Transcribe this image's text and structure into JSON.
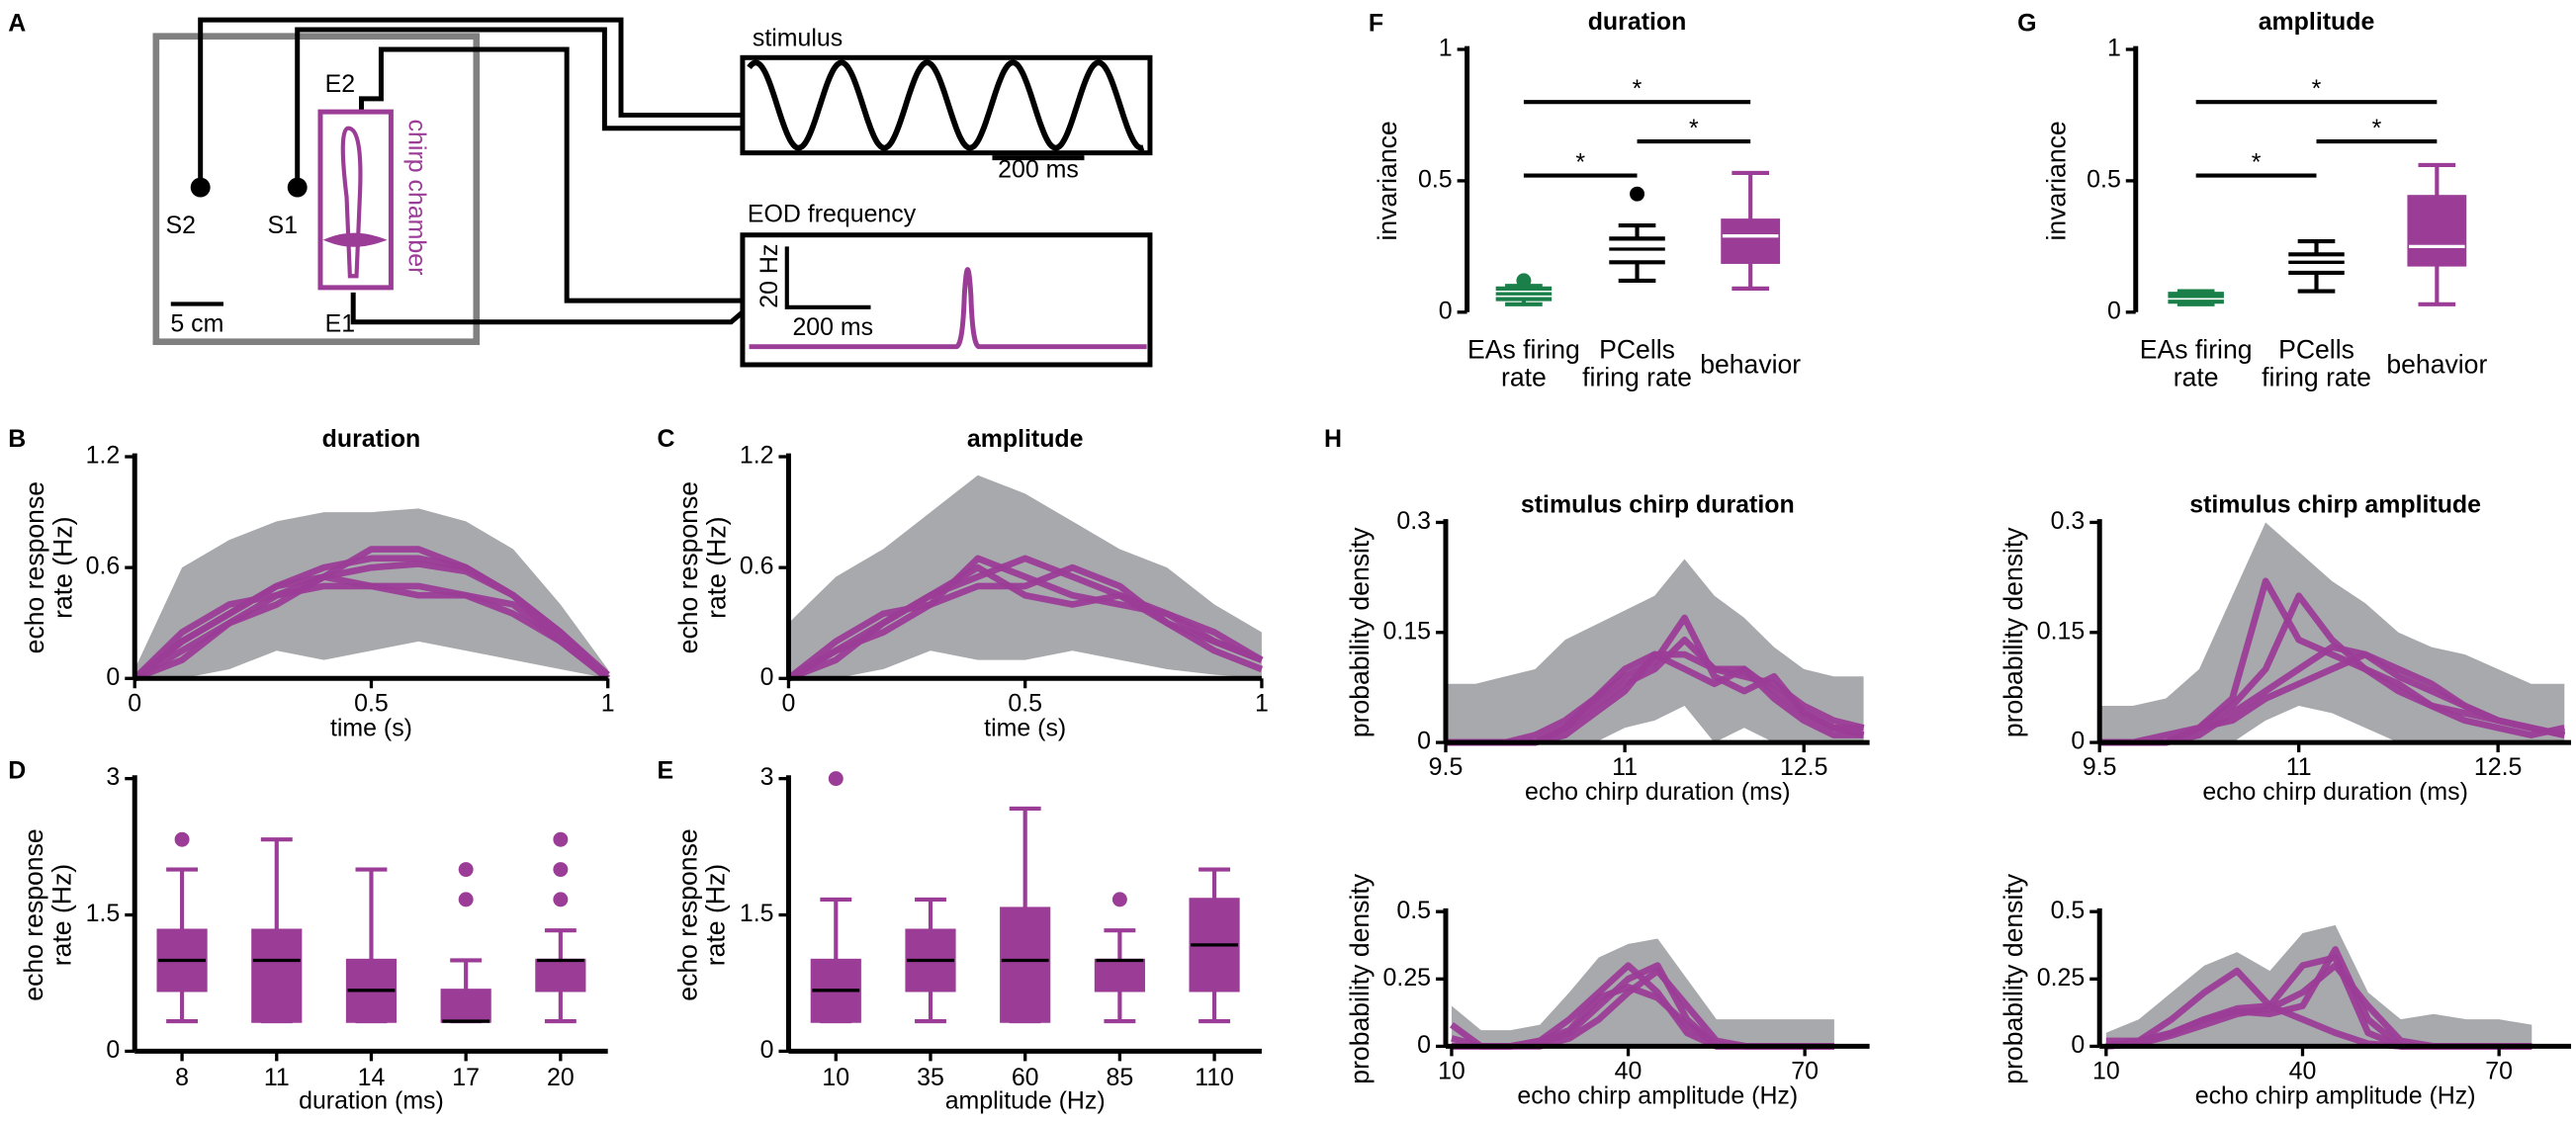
{
  "panel_labels": [
    "A",
    "B",
    "C",
    "D",
    "E",
    "F",
    "G",
    "H"
  ],
  "panel_a": {
    "stimulus": "stimulus",
    "eod": "EOD frequency",
    "stim_scale": "200 ms",
    "eod_freq_scale": "20 Hz",
    "eod_time_scale": "200 ms",
    "s2": "S2",
    "s1": "S1",
    "e2": "E2",
    "e1": "E1",
    "length_scale": "5 cm",
    "chamber": "chirp chamber"
  },
  "chart_data": [
    {
      "type": "line",
      "title": "duration",
      "ylabel": "echo response rate (Hz)",
      "xlabel": "time (s)",
      "x": [
        0,
        0.1,
        0.2,
        0.3,
        0.4,
        0.5,
        0.6,
        0.7,
        0.8,
        0.9,
        1
      ],
      "xlim": [
        0,
        1
      ],
      "xticks": [
        0,
        0.5,
        1
      ],
      "ylim": [
        0,
        1.2
      ],
      "yticks": [
        0,
        0.6,
        1.2
      ],
      "band": {
        "color": "#a7a9ac",
        "lower": [
          0,
          0,
          0.05,
          0.15,
          0.1,
          0.15,
          0.2,
          0.15,
          0.1,
          0.05,
          0
        ],
        "upper": [
          0.05,
          0.6,
          0.75,
          0.85,
          0.9,
          0.9,
          0.92,
          0.85,
          0.7,
          0.4,
          0.05
        ]
      },
      "series": [
        {
          "color": "#9b3c97",
          "values": [
            0,
            0.15,
            0.3,
            0.45,
            0.55,
            0.6,
            0.62,
            0.58,
            0.45,
            0.25,
            0
          ]
        },
        {
          "color": "#9b3c97",
          "values": [
            0,
            0.2,
            0.35,
            0.5,
            0.6,
            0.65,
            0.65,
            0.6,
            0.45,
            0.2,
            0.02
          ]
        },
        {
          "color": "#9b3c97",
          "values": [
            0,
            0.25,
            0.4,
            0.45,
            0.5,
            0.5,
            0.5,
            0.45,
            0.35,
            0.2,
            0
          ]
        },
        {
          "color": "#9b3c97",
          "values": [
            0,
            0.2,
            0.35,
            0.5,
            0.55,
            0.5,
            0.45,
            0.45,
            0.4,
            0.2,
            0
          ]
        },
        {
          "color": "#9b3c97",
          "values": [
            0,
            0.1,
            0.3,
            0.4,
            0.55,
            0.7,
            0.7,
            0.6,
            0.45,
            0.25,
            0.02
          ]
        }
      ]
    },
    {
      "type": "line",
      "title": "amplitude",
      "ylabel": "echo response rate (Hz)",
      "xlabel": "time (s)",
      "x": [
        0,
        0.1,
        0.2,
        0.3,
        0.4,
        0.5,
        0.6,
        0.7,
        0.8,
        0.9,
        1
      ],
      "xlim": [
        0,
        1
      ],
      "xticks": [
        0,
        0.5,
        1
      ],
      "ylim": [
        0,
        1.2
      ],
      "yticks": [
        0,
        0.6,
        1.2
      ],
      "band": {
        "color": "#a7a9ac",
        "lower": [
          0,
          0,
          0.05,
          0.15,
          0.1,
          0.1,
          0.15,
          0.1,
          0.05,
          0.02,
          0
        ],
        "upper": [
          0.3,
          0.55,
          0.7,
          0.9,
          1.1,
          1.0,
          0.85,
          0.7,
          0.6,
          0.4,
          0.25
        ]
      },
      "series": [
        {
          "color": "#9b3c97",
          "values": [
            0,
            0.15,
            0.3,
            0.45,
            0.6,
            0.45,
            0.4,
            0.45,
            0.35,
            0.25,
            0.1
          ]
        },
        {
          "color": "#9b3c97",
          "values": [
            0,
            0.2,
            0.35,
            0.4,
            0.65,
            0.55,
            0.45,
            0.4,
            0.35,
            0.2,
            0.1
          ]
        },
        {
          "color": "#9b3c97",
          "values": [
            0,
            0.1,
            0.3,
            0.45,
            0.55,
            0.65,
            0.55,
            0.45,
            0.3,
            0.15,
            0.05
          ]
        },
        {
          "color": "#9b3c97",
          "values": [
            0,
            0.15,
            0.25,
            0.4,
            0.5,
            0.5,
            0.6,
            0.5,
            0.3,
            0.2,
            0.1
          ]
        }
      ]
    },
    {
      "type": "box",
      "ylabel": "echo response rate (Hz)",
      "xlabel": "duration (ms)",
      "categories": [
        "8",
        "11",
        "14",
        "17",
        "20"
      ],
      "ylim": [
        0,
        3
      ],
      "yticks": [
        0,
        1.5,
        3
      ],
      "colors": [
        "#9b3c97",
        "#9b3c97",
        "#9b3c97",
        "#9b3c97",
        "#9b3c97"
      ],
      "filled": true,
      "median_color": "#000000",
      "spines": [
        "left",
        "bottom"
      ],
      "boxes": [
        {
          "min": 0.33,
          "q1": 0.67,
          "median": 1.0,
          "q3": 1.33,
          "max": 2.0,
          "outliers": [
            2.33
          ]
        },
        {
          "min": 0.33,
          "q1": 0.33,
          "median": 1.0,
          "q3": 1.33,
          "max": 2.33,
          "outliers": []
        },
        {
          "min": 0.33,
          "q1": 0.33,
          "median": 0.67,
          "q3": 1.0,
          "max": 2.0,
          "outliers": []
        },
        {
          "min": 0.33,
          "q1": 0.33,
          "median": 0.33,
          "q3": 0.67,
          "max": 1.0,
          "outliers": [
            1.67,
            2.0
          ]
        },
        {
          "min": 0.33,
          "q1": 0.67,
          "median": 1.0,
          "q3": 1.0,
          "max": 1.33,
          "outliers": [
            1.67,
            2.0,
            2.33
          ]
        }
      ]
    },
    {
      "type": "box",
      "ylabel": "echo response rate (Hz)",
      "xlabel": "amplitude (Hz)",
      "categories": [
        "10",
        "35",
        "60",
        "85",
        "110"
      ],
      "ylim": [
        0,
        3
      ],
      "yticks": [
        0,
        1.5,
        3
      ],
      "colors": [
        "#9b3c97",
        "#9b3c97",
        "#9b3c97",
        "#9b3c97",
        "#9b3c97"
      ],
      "filled": true,
      "median_color": "#000000",
      "spines": [
        "left",
        "bottom"
      ],
      "boxes": [
        {
          "min": 0.33,
          "q1": 0.33,
          "median": 0.67,
          "q3": 1.0,
          "max": 1.67,
          "outliers": [
            3.0
          ]
        },
        {
          "min": 0.33,
          "q1": 0.67,
          "median": 1.0,
          "q3": 1.33,
          "max": 1.67,
          "outliers": []
        },
        {
          "min": 0.33,
          "q1": 0.33,
          "median": 1.0,
          "q3": 1.57,
          "max": 2.67,
          "outliers": []
        },
        {
          "min": 0.33,
          "q1": 0.67,
          "median": 1.0,
          "q3": 1.0,
          "max": 1.33,
          "outliers": [
            1.67
          ]
        },
        {
          "min": 0.33,
          "q1": 0.67,
          "median": 1.17,
          "q3": 1.67,
          "max": 2.0,
          "outliers": []
        }
      ]
    },
    {
      "type": "box",
      "title": "duration",
      "ylabel": "invariance",
      "categories": [
        "EAs firing rate",
        "PCells firing rate",
        "behavior"
      ],
      "ylim": [
        0,
        1
      ],
      "yticks": [
        0,
        0.5,
        1
      ],
      "colors": [
        "#1b7f4a",
        "#000000",
        "#9b3c97"
      ],
      "filled": false,
      "median_color": "#ffffff",
      "spines": [
        "left"
      ],
      "annotations": [
        "*",
        "*",
        "*"
      ],
      "boxes": [
        {
          "min": 0.03,
          "q1": 0.05,
          "median": 0.07,
          "q3": 0.09,
          "max": 0.1,
          "outliers": [
            0.12
          ]
        },
        {
          "min": 0.12,
          "q1": 0.19,
          "median": 0.24,
          "q3": 0.28,
          "max": 0.33,
          "outliers": [
            0.45
          ]
        },
        {
          "min": 0.09,
          "q1": 0.19,
          "median": 0.29,
          "q3": 0.35,
          "max": 0.53,
          "outliers": []
        }
      ]
    },
    {
      "type": "box",
      "title": "amplitude",
      "ylabel": "invariance",
      "categories": [
        "EAs firing rate",
        "PCells firing rate",
        "behavior"
      ],
      "ylim": [
        0,
        1
      ],
      "yticks": [
        0,
        0.5,
        1
      ],
      "colors": [
        "#1b7f4a",
        "#000000",
        "#9b3c97"
      ],
      "filled": false,
      "median_color": "#ffffff",
      "spines": [
        "left"
      ],
      "annotations": [
        "*",
        "*",
        "*"
      ],
      "boxes": [
        {
          "min": 0.03,
          "q1": 0.04,
          "median": 0.06,
          "q3": 0.07,
          "max": 0.08,
          "outliers": []
        },
        {
          "min": 0.08,
          "q1": 0.15,
          "median": 0.19,
          "q3": 0.22,
          "max": 0.27,
          "outliers": []
        },
        {
          "min": 0.03,
          "q1": 0.18,
          "median": 0.25,
          "q3": 0.44,
          "max": 0.56,
          "outliers": []
        }
      ]
    },
    {
      "type": "line",
      "title": "stimulus chirp duration",
      "ylabel": "probability density",
      "xlabel": "echo chirp duration (ms)",
      "x": [
        9.5,
        9.75,
        10,
        10.25,
        10.5,
        10.75,
        11,
        11.25,
        11.5,
        11.75,
        12,
        12.25,
        12.5,
        12.75,
        13
      ],
      "xlim": [
        9.5,
        13.05
      ],
      "xticks": [
        9.5,
        11,
        12.5
      ],
      "ylim": [
        0,
        0.3
      ],
      "yticks": [
        0,
        0.15,
        0.3
      ],
      "band": {
        "color": "#a7a9ac",
        "lower": [
          0,
          0,
          0,
          0,
          0,
          0,
          0.02,
          0.03,
          0.05,
          0,
          0.02,
          0,
          0,
          0,
          0
        ],
        "upper": [
          0.08,
          0.08,
          0.09,
          0.1,
          0.14,
          0.16,
          0.18,
          0.2,
          0.25,
          0.2,
          0.17,
          0.13,
          0.1,
          0.09,
          0.09
        ]
      },
      "series": [
        {
          "color": "#9b3c97",
          "values": [
            0,
            0,
            0,
            0,
            0.02,
            0.05,
            0.08,
            0.1,
            0.14,
            0.1,
            0.09,
            0.08,
            0.05,
            0.03,
            0.02
          ]
        },
        {
          "color": "#9b3c97",
          "values": [
            0,
            0,
            0,
            0.01,
            0.03,
            0.06,
            0.1,
            0.12,
            0.12,
            0.1,
            0.1,
            0.07,
            0.04,
            0.02,
            0.01
          ]
        },
        {
          "color": "#9b3c97",
          "values": [
            0,
            0,
            0,
            0,
            0.02,
            0.06,
            0.09,
            0.11,
            0.17,
            0.09,
            0.07,
            0.09,
            0.04,
            0.02,
            0.02
          ]
        },
        {
          "color": "#9b3c97",
          "values": [
            0,
            0,
            0,
            0,
            0.01,
            0.04,
            0.07,
            0.12,
            0.1,
            0.08,
            0.1,
            0.06,
            0.03,
            0.01,
            0.01
          ]
        }
      ]
    },
    {
      "type": "line",
      "title": "stimulus chirp amplitude",
      "ylabel": "probability density",
      "xlabel": "echo chirp duration (ms)",
      "x": [
        9.5,
        9.75,
        10,
        10.25,
        10.5,
        10.75,
        11,
        11.25,
        11.5,
        11.75,
        12,
        12.25,
        12.5,
        12.75,
        13
      ],
      "xlim": [
        9.5,
        13.05
      ],
      "xticks": [
        9.5,
        11,
        12.5
      ],
      "ylim": [
        0,
        0.3
      ],
      "yticks": [
        0,
        0.15,
        0.3
      ],
      "band": {
        "color": "#a7a9ac",
        "lower": [
          0,
          0,
          0,
          0,
          0,
          0.03,
          0.05,
          0.04,
          0.02,
          0,
          0,
          0,
          0,
          0,
          0
        ],
        "upper": [
          0.05,
          0.05,
          0.06,
          0.1,
          0.2,
          0.3,
          0.26,
          0.22,
          0.19,
          0.15,
          0.13,
          0.12,
          0.1,
          0.08,
          0.08
        ]
      },
      "series": [
        {
          "color": "#9b3c97",
          "values": [
            0,
            0,
            0,
            0.02,
            0.06,
            0.22,
            0.14,
            0.12,
            0.1,
            0.08,
            0.05,
            0.04,
            0.03,
            0.02,
            0.01
          ]
        },
        {
          "color": "#9b3c97",
          "values": [
            0,
            0,
            0,
            0.02,
            0.05,
            0.1,
            0.2,
            0.14,
            0.1,
            0.07,
            0.05,
            0.03,
            0.02,
            0.01,
            0.02
          ]
        },
        {
          "color": "#9b3c97",
          "values": [
            0,
            0,
            0,
            0.01,
            0.04,
            0.07,
            0.1,
            0.13,
            0.12,
            0.09,
            0.07,
            0.05,
            0.03,
            0.02,
            0.01
          ]
        },
        {
          "color": "#9b3c97",
          "values": [
            0,
            0,
            0.01,
            0.02,
            0.03,
            0.06,
            0.08,
            0.1,
            0.12,
            0.1,
            0.08,
            0.05,
            0.03,
            0.02,
            0.01
          ]
        }
      ]
    },
    {
      "type": "line",
      "ylabel": "probability density",
      "xlabel": "echo chirp amplitude (Hz)",
      "x": [
        10,
        15,
        20,
        25,
        30,
        35,
        40,
        45,
        50,
        55,
        60,
        65,
        70,
        75
      ],
      "xlim": [
        9,
        81
      ],
      "xticks": [
        10,
        40,
        70
      ],
      "ylim": [
        0,
        0.5
      ],
      "yticks": [
        0,
        0.25,
        0.5
      ],
      "band": {
        "color": "#a7a9ac",
        "lower": [
          0,
          0,
          0,
          0,
          0,
          0,
          0,
          0,
          0,
          0,
          0,
          0,
          0,
          0
        ],
        "upper": [
          0.15,
          0.06,
          0.06,
          0.08,
          0.2,
          0.33,
          0.38,
          0.4,
          0.25,
          0.1,
          0.1,
          0.1,
          0.1,
          0.1
        ]
      },
      "series": [
        {
          "color": "#9b3c97",
          "values": [
            0.08,
            0,
            0,
            0.02,
            0.1,
            0.2,
            0.3,
            0.2,
            0.05,
            0,
            0,
            0,
            0,
            0
          ]
        },
        {
          "color": "#9b3c97",
          "values": [
            0.03,
            0,
            0,
            0.01,
            0.05,
            0.15,
            0.25,
            0.3,
            0.1,
            0,
            0,
            0,
            0,
            0
          ]
        },
        {
          "color": "#9b3c97",
          "values": [
            0,
            0,
            0,
            0,
            0.03,
            0.1,
            0.2,
            0.28,
            0.15,
            0.02,
            0,
            0,
            0,
            0
          ]
        },
        {
          "color": "#9b3c97",
          "values": [
            0,
            0,
            0,
            0.02,
            0.06,
            0.18,
            0.22,
            0.18,
            0.08,
            0.01,
            0,
            0,
            0,
            0
          ]
        }
      ]
    },
    {
      "type": "line",
      "ylabel": "probability density",
      "xlabel": "echo chirp amplitude (Hz)",
      "x": [
        10,
        15,
        20,
        25,
        30,
        35,
        40,
        45,
        50,
        55,
        60,
        65,
        70,
        75
      ],
      "xlim": [
        9,
        81
      ],
      "xticks": [
        10,
        40,
        70
      ],
      "ylim": [
        0,
        0.5
      ],
      "yticks": [
        0,
        0.25,
        0.5
      ],
      "band": {
        "color": "#a7a9ac",
        "lower": [
          0,
          0,
          0,
          0,
          0,
          0,
          0,
          0,
          0,
          0,
          0,
          0,
          0,
          0
        ],
        "upper": [
          0.05,
          0.1,
          0.2,
          0.3,
          0.35,
          0.28,
          0.42,
          0.45,
          0.2,
          0.1,
          0.12,
          0.1,
          0.1,
          0.08
        ]
      },
      "series": [
        {
          "color": "#9b3c97",
          "values": [
            0.02,
            0.02,
            0.1,
            0.2,
            0.28,
            0.15,
            0.1,
            0.05,
            0.01,
            0,
            0,
            0,
            0,
            0
          ]
        },
        {
          "color": "#9b3c97",
          "values": [
            0,
            0.01,
            0.05,
            0.1,
            0.13,
            0.12,
            0.15,
            0.36,
            0.1,
            0,
            0,
            0,
            0,
            0
          ]
        },
        {
          "color": "#9b3c97",
          "values": [
            0,
            0.02,
            0.05,
            0.1,
            0.14,
            0.15,
            0.3,
            0.33,
            0.05,
            0,
            0,
            0,
            0,
            0
          ]
        },
        {
          "color": "#9b3c97",
          "values": [
            0,
            0.01,
            0.04,
            0.08,
            0.12,
            0.14,
            0.2,
            0.3,
            0.15,
            0.02,
            0,
            0,
            0,
            0
          ]
        }
      ]
    }
  ]
}
